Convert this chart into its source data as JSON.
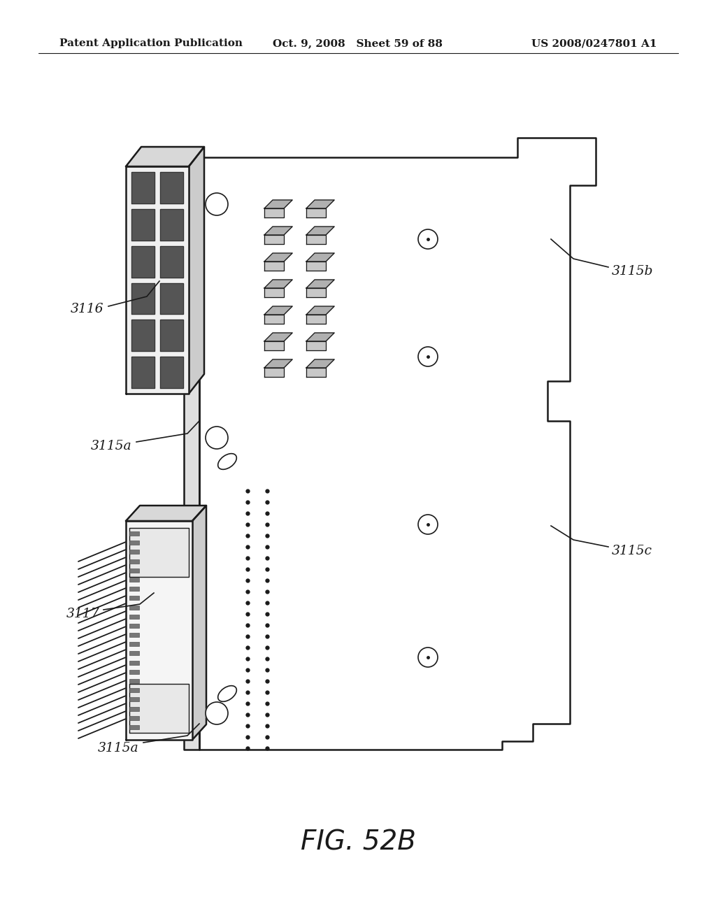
{
  "bg_color": "#ffffff",
  "line_color": "#1a1a1a",
  "header_left": "Patent Application Publication",
  "header_center": "Oct. 9, 2008   Sheet 59 of 88",
  "header_right": "US 2008/0247801 A1",
  "figure_label": "FIG. 52B"
}
